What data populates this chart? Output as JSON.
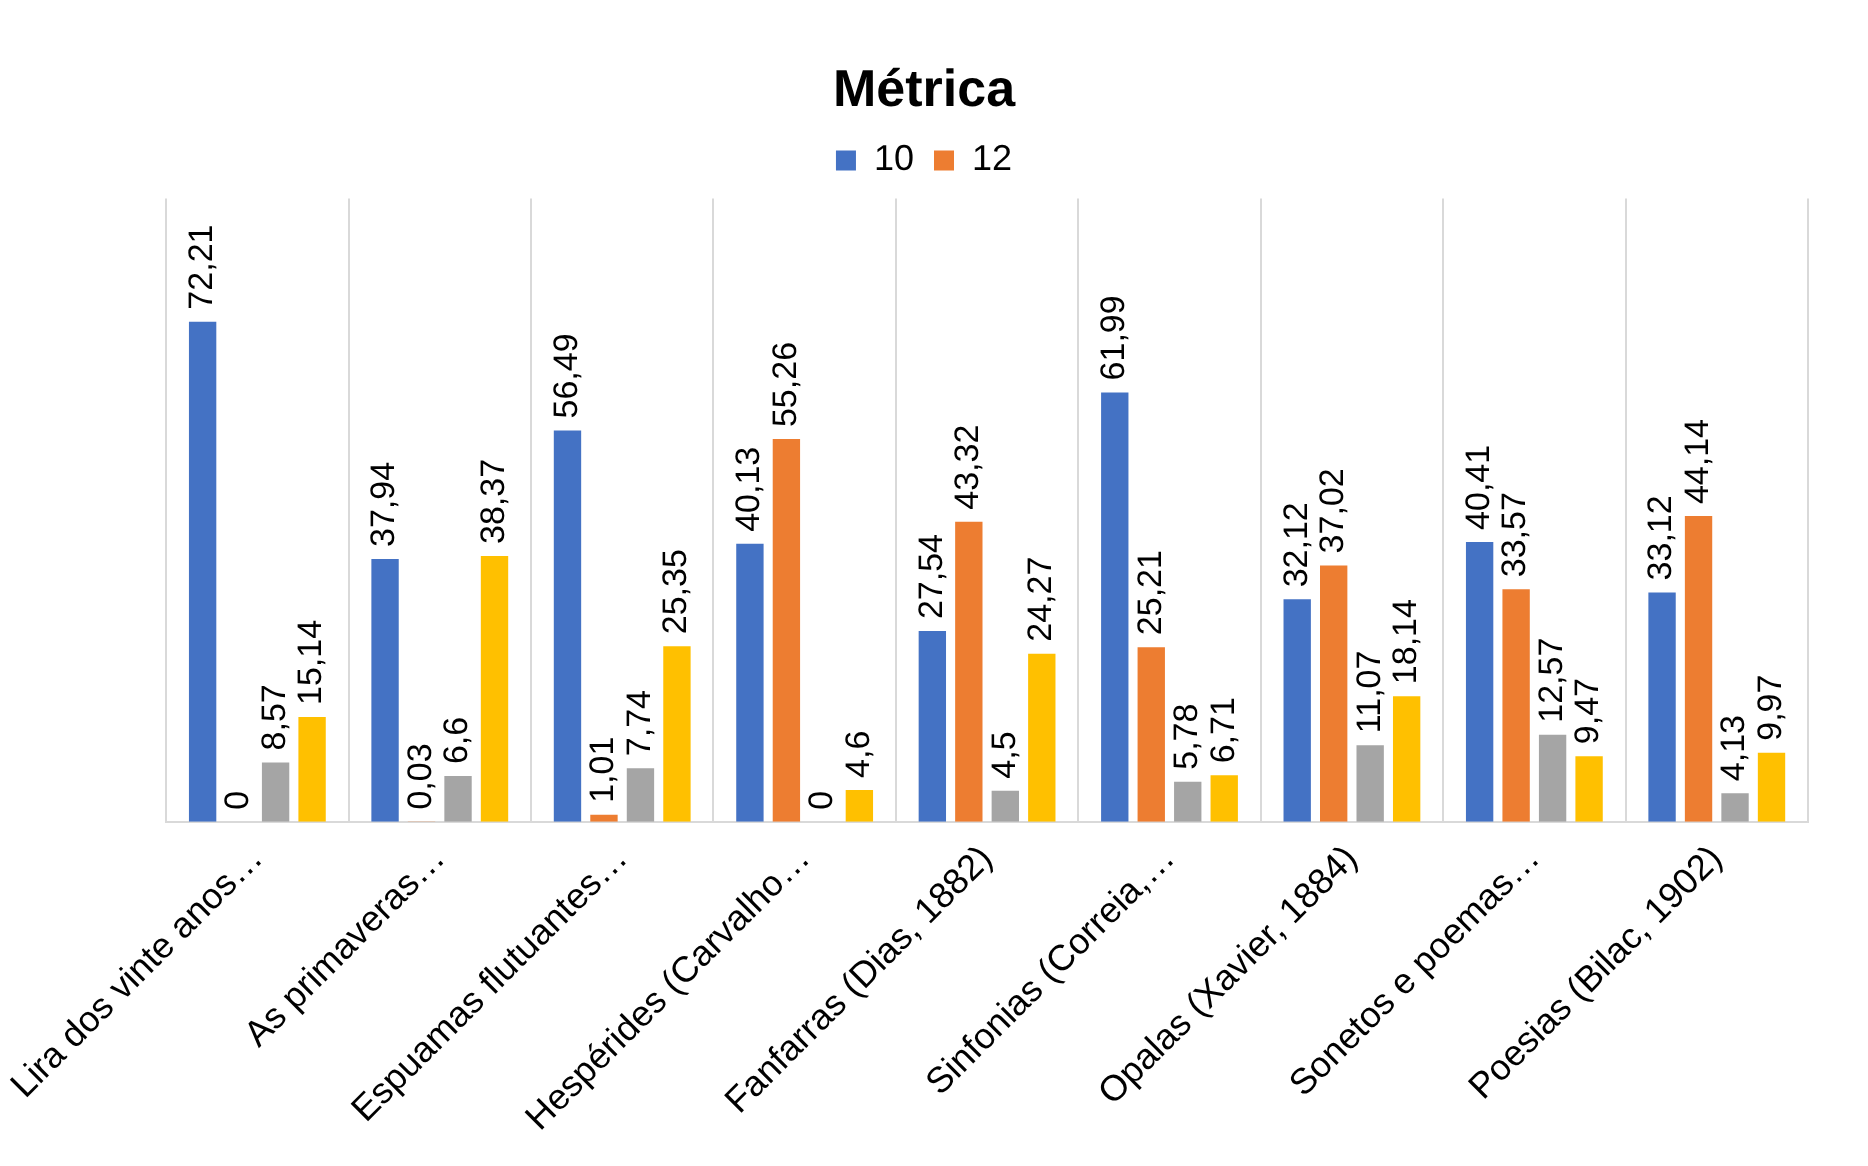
{
  "chart_data": {
    "type": "bar",
    "title": "Métrica",
    "categories": [
      "Lira dos vinte anos…",
      "As primaveras…",
      "Espuamas flutuantes…",
      "Hespérides (Carvalho…",
      "Fanfarras (Dias, 1882)",
      "Sinfonias (Correia,…",
      "Opalas (Xavier, 1884)",
      "Sonetos e poemas…",
      "Poesias (Bilac, 1902)"
    ],
    "series": [
      {
        "name": "10",
        "color": "#4472c4",
        "values": [
          72.21,
          37.94,
          56.49,
          40.13,
          27.54,
          61.99,
          32.12,
          40.41,
          33.12
        ],
        "value_labels": [
          "72,21",
          "37,94",
          "56,49",
          "40,13",
          "27,54",
          "61,99",
          "32,12",
          "40,41",
          "33,12"
        ]
      },
      {
        "name": "12",
        "color": "#ed7d31",
        "values": [
          0,
          0.03,
          1.01,
          55.26,
          43.32,
          25.21,
          37.02,
          33.57,
          44.14
        ],
        "value_labels": [
          "0",
          "0,03",
          "1,01",
          "55,26",
          "43,32",
          "25,21",
          "37,02",
          "33,57",
          "44,14"
        ]
      },
      {
        "color": "#a5a5a5",
        "values": [
          8.57,
          6.6,
          7.74,
          0,
          4.5,
          5.78,
          11.07,
          12.57,
          4.13
        ],
        "value_labels": [
          "8,57",
          "6,6",
          "7,74",
          "0",
          "4,5",
          "5,78",
          "11,07",
          "12,57",
          "4,13"
        ]
      },
      {
        "color": "#ffc000",
        "values": [
          15.14,
          38.37,
          25.35,
          4.6,
          24.27,
          6.71,
          18.14,
          9.47,
          9.97
        ],
        "value_labels": [
          "15,14",
          "38,37",
          "25,35",
          "4,6",
          "24,27",
          "6,71",
          "18,14",
          "9,47",
          "9,97"
        ]
      }
    ],
    "grid": "x",
    "legend": "top",
    "tick_labels": "x"
  }
}
